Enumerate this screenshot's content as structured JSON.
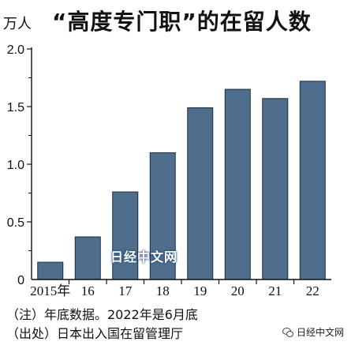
{
  "chart_data": {
    "type": "bar",
    "title": "“高度专门职”的在留人数",
    "unit": "万人",
    "categories": [
      "2015年",
      "16",
      "17",
      "18",
      "19",
      "20",
      "21",
      "22"
    ],
    "values": [
      0.15,
      0.37,
      0.76,
      1.1,
      1.49,
      1.65,
      1.57,
      1.72
    ],
    "ylim": [
      0,
      2.0
    ],
    "yticks": [
      "0",
      "0.5",
      "1.0",
      "1.5",
      "2.0"
    ],
    "ytick_values": [
      0,
      0.5,
      1.0,
      1.5,
      2.0
    ],
    "xlabel": "",
    "ylabel": "",
    "grid": false,
    "bar_color": "#4f6e8d",
    "bar_edge_color": "#1d2d3d"
  },
  "notes": {
    "note": "（注）年底数据。2022年是6月底",
    "source": "（出处）日本出入国在留管理厅"
  },
  "watermarks": {
    "center": "日经中文网",
    "corner": "日经中文网",
    "corner_icon": "wechat-icon"
  }
}
